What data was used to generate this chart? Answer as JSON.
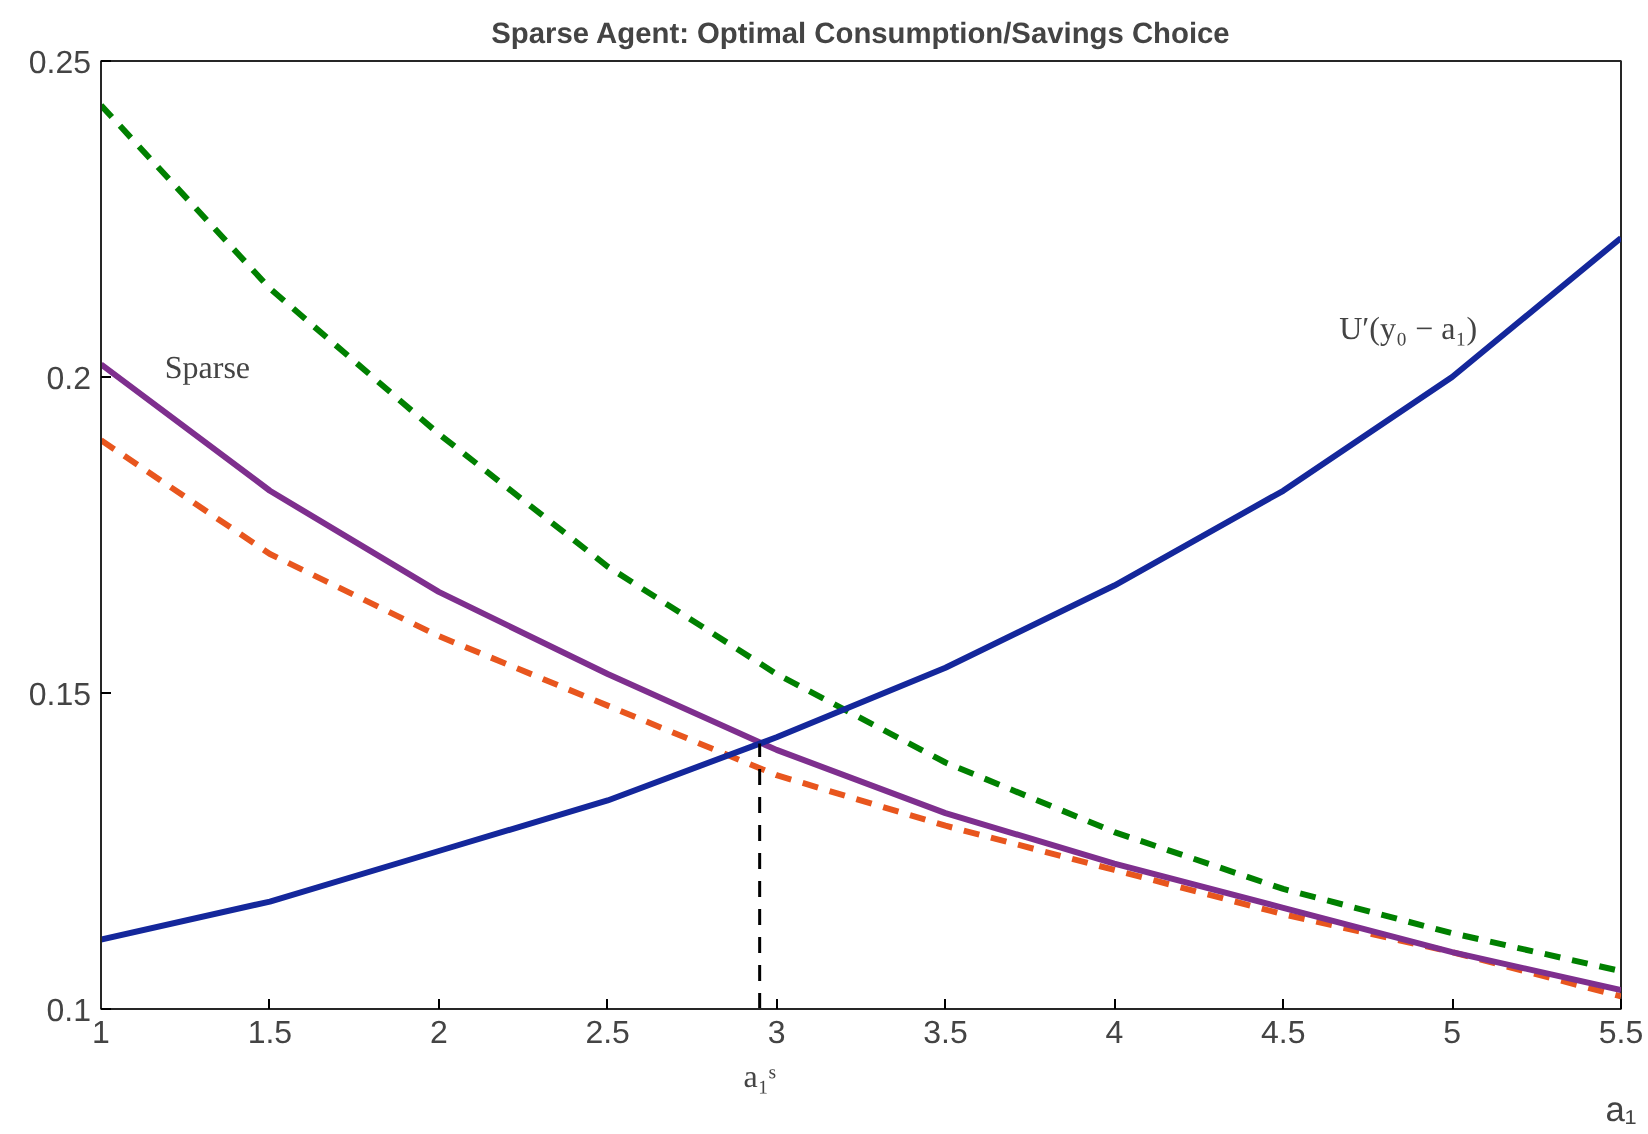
{
  "chart_data": {
    "type": "line",
    "title": "Sparse Agent: Optimal Consumption/Savings Choice",
    "xlabel": "a₁",
    "x": [
      1,
      1.5,
      2,
      2.5,
      3,
      3.5,
      4,
      4.5,
      5,
      5.5
    ],
    "series": [
      {
        "color": "#008000",
        "line_style": "dashed",
        "values": [
          0.243,
          0.214,
          0.191,
          0.17,
          0.153,
          0.139,
          0.128,
          0.119,
          0.112,
          0.106
        ]
      },
      {
        "color": "#e8561e",
        "line_style": "dashed",
        "values": [
          0.19,
          0.172,
          0.159,
          0.148,
          0.137,
          0.129,
          0.122,
          0.115,
          0.109,
          0.102
        ]
      },
      {
        "color": "#7e2f8e",
        "line_style": "solid",
        "values": [
          0.202,
          0.182,
          0.166,
          0.153,
          0.141,
          0.131,
          0.123,
          0.116,
          0.109,
          0.103
        ]
      },
      {
        "color": "#14279b",
        "line_style": "solid",
        "values": [
          0.111,
          0.117,
          0.125,
          0.133,
          0.143,
          0.154,
          0.167,
          0.182,
          0.2,
          0.222
        ]
      },
      {
        "color": "#000000",
        "line_style": "dashed",
        "x": [
          2.95,
          2.95
        ],
        "values": [
          0.1,
          0.142
        ]
      }
    ],
    "annotations": [
      "Sparse",
      "U′(y₀ − a₁)",
      "a₁ˢ"
    ],
    "xlim": [
      1,
      5.5
    ],
    "ylim": [
      0.1,
      0.25
    ],
    "xticks": [
      1,
      1.5,
      2,
      2.5,
      3,
      3.5,
      4,
      4.5,
      5,
      5.5
    ],
    "yticks": [
      0.1,
      0.15,
      0.2,
      0.25
    ],
    "grid": false
  }
}
